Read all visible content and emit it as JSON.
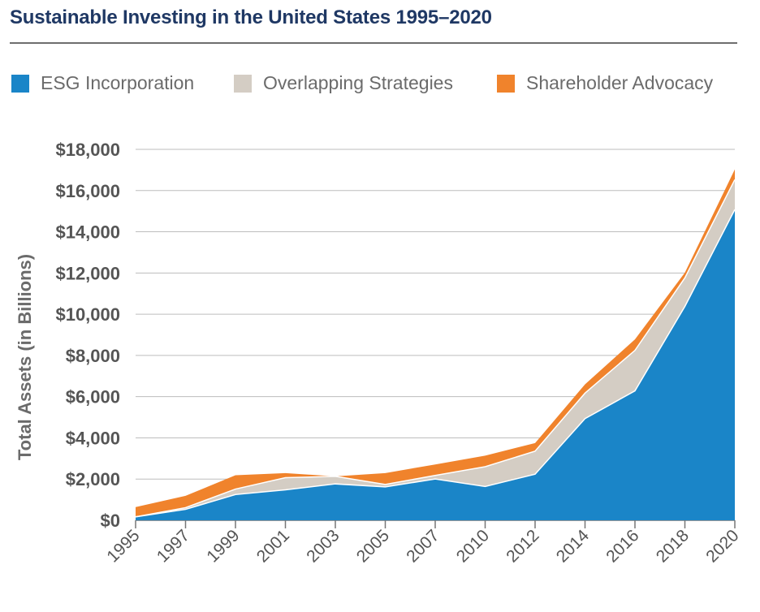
{
  "title": "Sustainable Investing in the United States 1995–2020",
  "chart_data": {
    "type": "area",
    "stacked": true,
    "categories": [
      "1995",
      "1997",
      "1999",
      "2001",
      "2003",
      "2005",
      "2007",
      "2010",
      "2012",
      "2014",
      "2016",
      "2018",
      "2020"
    ],
    "series": [
      {
        "name": "ESG Incorporation",
        "color": "#1a85c8",
        "values": [
          166,
          529,
          1249,
          1475,
          1765,
          1621,
          2003,
          1640,
          2235,
          4932,
          6282,
          10379,
          15080
        ]
      },
      {
        "name": "Overlapping Strategies",
        "color": "#d4cdc4",
        "values": [
          0,
          84,
          265,
          592,
          366,
          117,
          174,
          960,
          1119,
          1239,
          1963,
          1384,
          1450
        ]
      },
      {
        "name": "Shareholder Advocacy",
        "color": "#f0832c",
        "values": [
          473,
          572,
          672,
          224,
          0,
          552,
          533,
          537,
          393,
          427,
          535,
          254,
          500
        ]
      }
    ],
    "ylabel": "Total Assets (in Billions)",
    "ylim": [
      0,
      18000
    ],
    "yticks": [
      "$0",
      "$2,000",
      "$4,000",
      "$6,000",
      "$8,000",
      "$10,000",
      "$12,000",
      "$14,000",
      "$16,000",
      "$18,000"
    ],
    "ytick_values": [
      0,
      2000,
      4000,
      6000,
      8000,
      10000,
      12000,
      14000,
      16000,
      18000
    ],
    "grid": true,
    "legend_position": "top"
  }
}
